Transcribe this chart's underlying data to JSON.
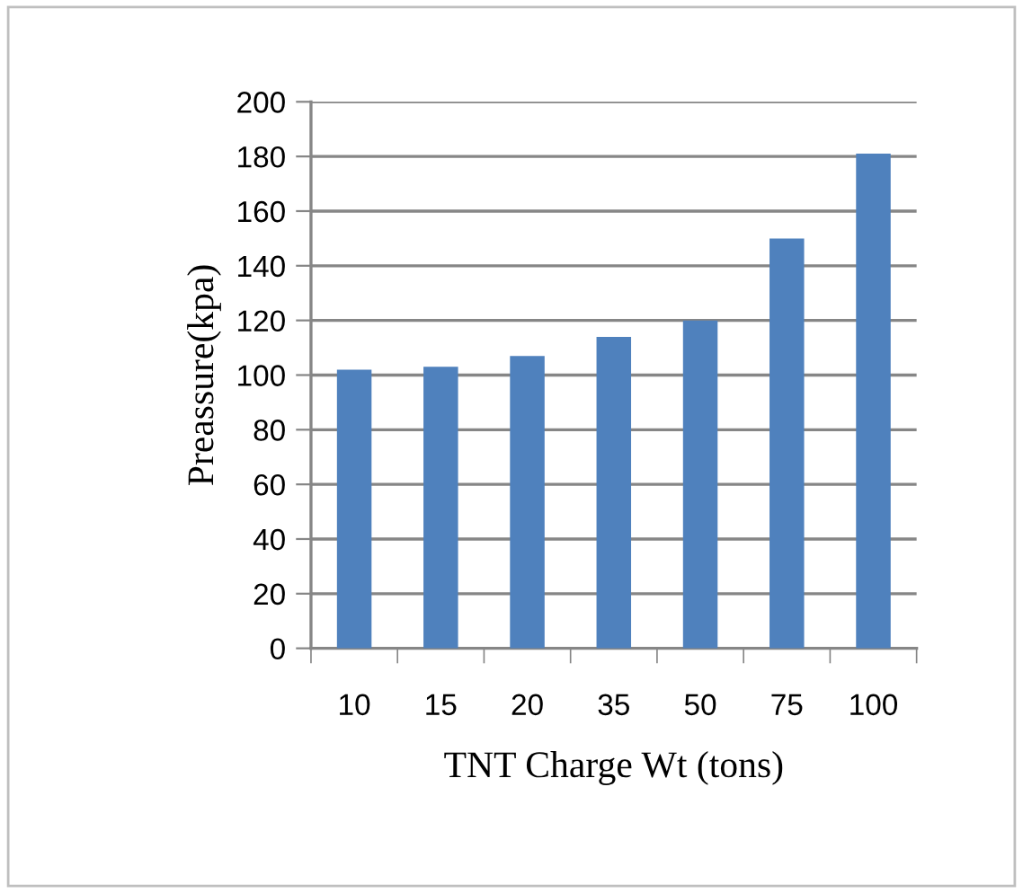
{
  "chart_data": {
    "type": "bar",
    "xlabel": "TNT Charge Wt (tons)",
    "ylabel": "Preassure(kpa)",
    "categories": [
      "10",
      "15",
      "20",
      "35",
      "50",
      "75",
      "100"
    ],
    "values": [
      102,
      103,
      107,
      114,
      120,
      150,
      181
    ],
    "color": "#4f81bd",
    "ylim": [
      0,
      200
    ],
    "yticks": [
      0,
      20,
      40,
      60,
      80,
      100,
      120,
      140,
      160,
      180,
      200
    ],
    "grid": "y",
    "legend": false
  }
}
